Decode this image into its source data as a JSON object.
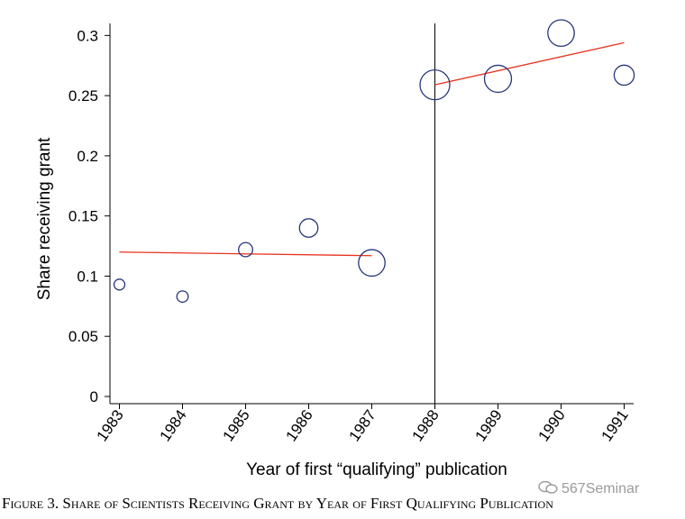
{
  "chart_data": {
    "type": "scatter",
    "title": "",
    "xlabel": "Year of first “qualifying” publication",
    "ylabel": "Share receiving grant",
    "xlim": [
      1982.85,
      1991.15
    ],
    "ylim": [
      -0.006,
      0.31
    ],
    "x_ticks": [
      1983,
      1984,
      1985,
      1986,
      1987,
      1988,
      1989,
      1990,
      1991
    ],
    "y_ticks": [
      0,
      0.05,
      0.1,
      0.15,
      0.2,
      0.25,
      0.3
    ],
    "y_tick_labels": [
      "0",
      "0.05",
      "0.1",
      "0.15",
      "0.2",
      "0.25",
      "0.3"
    ],
    "points": [
      {
        "x": 1983,
        "y": 0.093,
        "size": 1.0
      },
      {
        "x": 1984,
        "y": 0.083,
        "size": 1.05
      },
      {
        "x": 1985,
        "y": 0.122,
        "size": 1.3
      },
      {
        "x": 1986,
        "y": 0.14,
        "size": 1.7
      },
      {
        "x": 1987,
        "y": 0.111,
        "size": 2.45
      },
      {
        "x": 1988,
        "y": 0.259,
        "size": 2.75
      },
      {
        "x": 1989,
        "y": 0.264,
        "size": 2.5
      },
      {
        "x": 1990,
        "y": 0.302,
        "size": 2.45
      },
      {
        "x": 1991,
        "y": 0.267,
        "size": 1.85
      }
    ],
    "fit_lines": [
      {
        "name": "pre-1988 fit",
        "x": [
          1983,
          1987
        ],
        "y": [
          0.12,
          0.117
        ],
        "color": "#e8321e"
      },
      {
        "name": "post-1988 fit",
        "x": [
          1988,
          1991
        ],
        "y": [
          0.259,
          0.294
        ],
        "color": "#e8321e"
      }
    ],
    "vertical_line": {
      "x": 1988
    },
    "marker_color": "#28357a"
  },
  "caption": "Figure 3. Share of Scientists Receiving Grant by Year of First Qualifying Publication",
  "watermark": "567Seminar"
}
